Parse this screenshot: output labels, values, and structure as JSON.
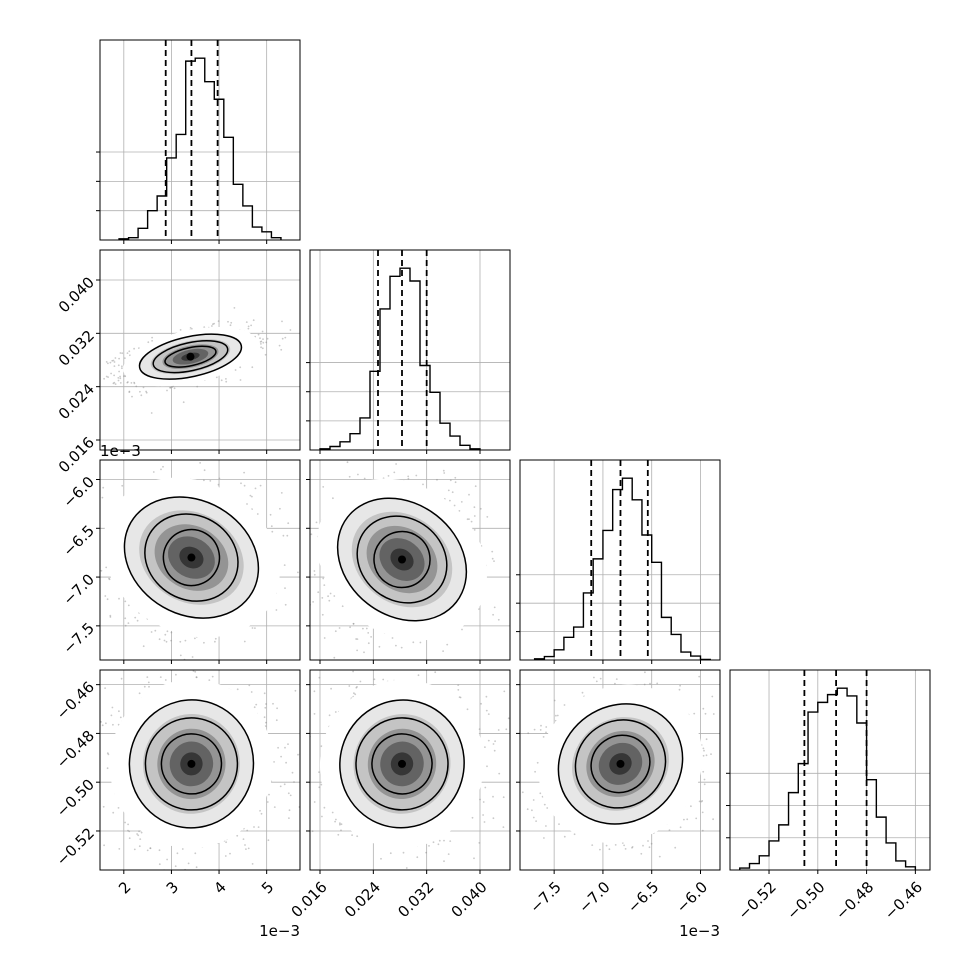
{
  "chart_data": {
    "type": "corner",
    "params": [
      {
        "range": [
          1.5,
          5.7
        ],
        "ticks": [
          2,
          3,
          4,
          5
        ],
        "tick_labels": [
          "2",
          "3",
          "4",
          "5"
        ],
        "offset_label": "1e−3",
        "quantiles": [
          2.88,
          3.42,
          3.97
        ],
        "hist": {
          "edges": [
            1.9,
            2.1,
            2.3,
            2.5,
            2.7,
            2.9,
            3.1,
            3.3,
            3.5,
            3.7,
            3.9,
            4.1,
            4.3,
            4.5,
            4.7,
            4.9,
            5.1,
            5.3
          ],
          "counts": [
            2,
            4,
            20,
            50,
            75,
            140,
            180,
            305,
            310,
            270,
            240,
            175,
            95,
            58,
            22,
            14,
            4
          ]
        }
      },
      {
        "range": [
          0.0145,
          0.0445
        ],
        "ticks": [
          0.016,
          0.024,
          0.032,
          0.04
        ],
        "tick_labels": [
          "0.016",
          "0.024",
          "0.032",
          "0.040"
        ],
        "offset_label": "",
        "quantiles": [
          0.0247,
          0.0283,
          0.032
        ],
        "hist": {
          "edges": [
            0.016,
            0.0175,
            0.019,
            0.0205,
            0.022,
            0.0235,
            0.025,
            0.0265,
            0.028,
            0.0295,
            0.031,
            0.0325,
            0.034,
            0.0355,
            0.037,
            0.0385,
            0.04
          ],
          "counts": [
            2,
            6,
            14,
            28,
            55,
            135,
            242,
            298,
            312,
            290,
            145,
            99,
            46,
            24,
            8,
            2
          ]
        }
      },
      {
        "range": [
          -7.85,
          -5.8
        ],
        "ticks": [
          -7.5,
          -7,
          -6.5,
          -6
        ],
        "tick_labels": [
          "−7.5",
          "−7.0",
          "−6.5",
          "−6.0"
        ],
        "offset_label": "1e−3",
        "quantiles": [
          -7.12,
          -6.82,
          -6.54
        ],
        "hist": {
          "edges": [
            -7.7,
            -7.6,
            -7.5,
            -7.4,
            -7.3,
            -7.2,
            -7.1,
            -7.0,
            -6.9,
            -6.8,
            -6.7,
            -6.6,
            -6.5,
            -6.4,
            -6.3,
            -6.2,
            -6.1,
            -6.0,
            -5.9
          ],
          "counts": [
            2,
            6,
            18,
            40,
            58,
            118,
            178,
            228,
            300,
            320,
            282,
            220,
            172,
            75,
            45,
            14,
            7,
            1
          ]
        }
      },
      {
        "range": [
          -0.536,
          -0.454
        ],
        "ticks": [
          -0.52,
          -0.5,
          -0.48,
          -0.46
        ],
        "tick_labels": [
          "−0.52",
          "−0.50",
          "−0.48",
          "−0.46"
        ],
        "offset_label": "",
        "quantiles": [
          -0.5055,
          -0.4925,
          -0.48
        ],
        "hist": {
          "edges": [
            -0.532,
            -0.528,
            -0.524,
            -0.52,
            -0.516,
            -0.512,
            -0.508,
            -0.504,
            -0.5,
            -0.496,
            -0.492,
            -0.488,
            -0.484,
            -0.48,
            -0.476,
            -0.472,
            -0.468,
            -0.464,
            -0.46
          ],
          "counts": [
            3,
            10,
            22,
            45,
            70,
            120,
            165,
            245,
            260,
            272,
            282,
            270,
            228,
            140,
            82,
            42,
            14,
            5
          ]
        }
      }
    ],
    "pairs": [
      {
        "row": 1,
        "col": 0,
        "center": [
          3.4,
          0.0285
        ],
        "axes_deg": 12.3,
        "widths": [
          0.26,
          0.38,
          0.52
        ],
        "heights": [
          0.09,
          0.14,
          0.2
        ],
        "ratio": 1.03
      },
      {
        "row": 2,
        "col": 0,
        "center": [
          3.42,
          -6.8
        ],
        "axes_deg": -30,
        "widths": [
          0.28,
          0.48,
          0.7
        ],
        "heights": [
          0.28,
          0.42,
          0.57
        ],
        "ratio": 0.98
      },
      {
        "row": 2,
        "col": 1,
        "center": [
          0.0283,
          -6.82
        ],
        "axes_deg": -38,
        "widths": [
          0.28,
          0.47,
          0.69
        ],
        "heights": [
          0.28,
          0.41,
          0.56
        ],
        "ratio": 0.98
      },
      {
        "row": 3,
        "col": 0,
        "center": [
          3.42,
          -0.4925
        ],
        "axes_deg": 82,
        "widths": [
          0.3,
          0.46,
          0.64
        ],
        "heights": [
          0.3,
          0.46,
          0.62
        ],
        "ratio": 0.98
      },
      {
        "row": 3,
        "col": 1,
        "center": [
          0.0283,
          -0.4925
        ],
        "axes_deg": 74,
        "widths": [
          0.3,
          0.46,
          0.64
        ],
        "heights": [
          0.3,
          0.46,
          0.62
        ],
        "ratio": 0.98
      },
      {
        "row": 3,
        "col": 2,
        "center": [
          -6.82,
          -0.4925
        ],
        "axes_deg": 35,
        "widths": [
          0.3,
          0.46,
          0.64
        ],
        "heights": [
          0.28,
          0.43,
          0.58
        ],
        "ratio": 0.98
      }
    ],
    "grid": true
  }
}
